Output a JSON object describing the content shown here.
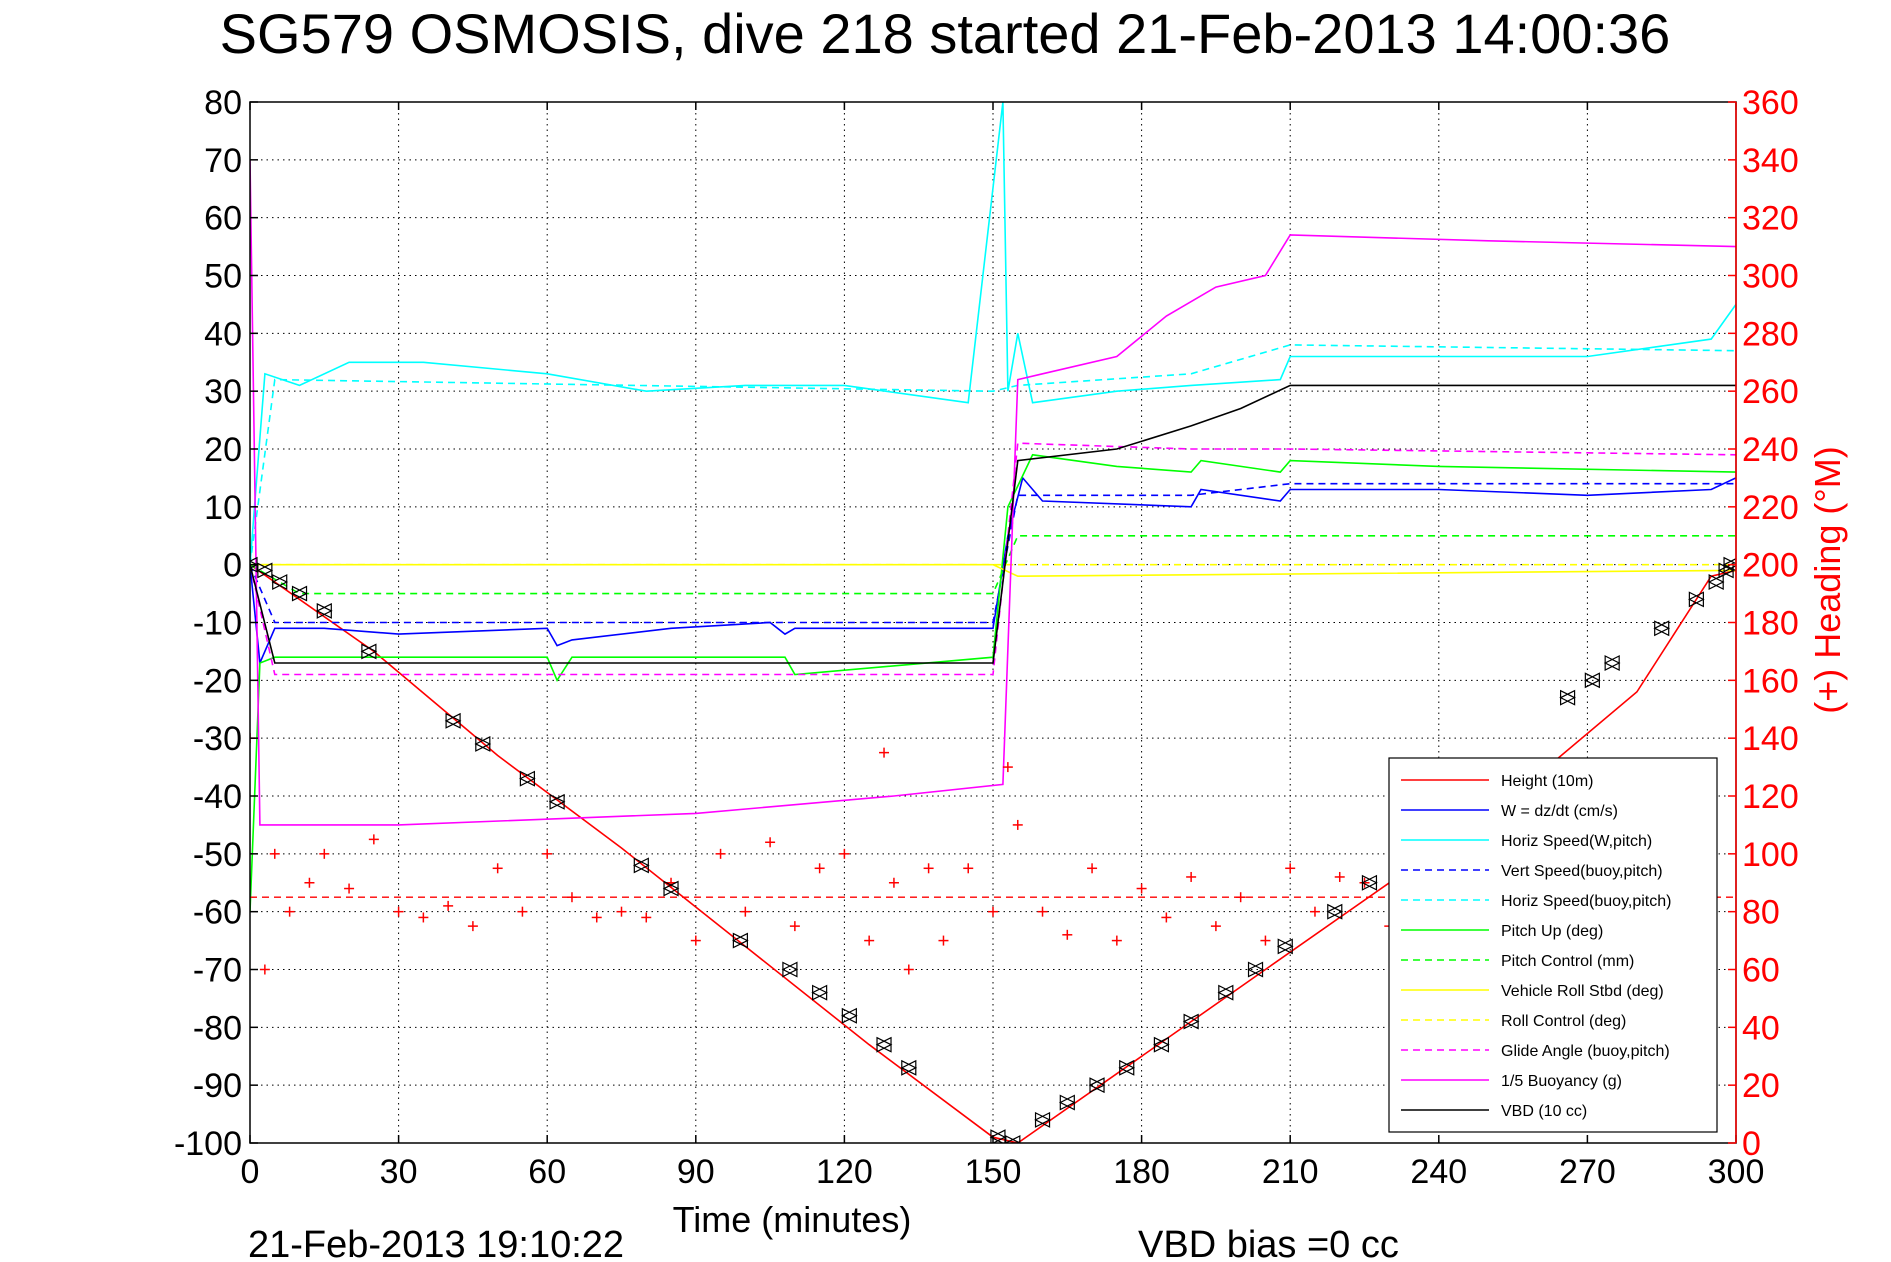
{
  "chart_data": {
    "type": "line",
    "title": "SG579 OSMOSIS, dive 218 started 21-Feb-2013 14:00:36",
    "xlabel": "Time (minutes)",
    "ylabel_right": "(+) Heading (°M)",
    "xlim": [
      0,
      300
    ],
    "ylim": [
      -100,
      80
    ],
    "ylim_right": [
      0,
      360
    ],
    "x_ticks": [
      "0",
      "30",
      "60",
      "90",
      "120",
      "150",
      "180",
      "210",
      "240",
      "270",
      "300"
    ],
    "y_ticks": [
      "80",
      "70",
      "60",
      "50",
      "40",
      "30",
      "20",
      "10",
      "0",
      "-10",
      "-20",
      "-30",
      "-40",
      "-50",
      "-60",
      "-70",
      "-80",
      "-90",
      "-100"
    ],
    "y_right_ticks": [
      "360",
      "340",
      "320",
      "300",
      "280",
      "260",
      "240",
      "220",
      "200",
      "180",
      "160",
      "140",
      "120",
      "100",
      "80",
      "60",
      "40",
      "20",
      "0"
    ],
    "grid": true,
    "legend_position": "lower-right",
    "footer_left": "21-Feb-2013 19:10:22",
    "footer_right": "VBD bias =0 cc",
    "series": [
      {
        "name": "Height (10m)",
        "color": "#ff0000",
        "style": "solid",
        "x": [
          0,
          25,
          50,
          75,
          100,
          125,
          150,
          155,
          180,
          205,
          230,
          255,
          280,
          295,
          300
        ],
        "y": [
          0,
          -15,
          -33,
          -49,
          -66,
          -83,
          -99,
          -100,
          -85,
          -70,
          -55,
          -40,
          -22,
          -2,
          -1
        ]
      },
      {
        "name": "W = dz/dt (cm/s)",
        "color": "#0000ff",
        "style": "solid",
        "x": [
          0,
          2,
          5,
          15,
          30,
          60,
          62,
          65,
          85,
          105,
          108,
          110,
          150,
          153,
          156,
          160,
          190,
          192,
          208,
          210,
          240,
          270,
          295,
          300
        ],
        "y": [
          0,
          -17,
          -11,
          -11,
          -12,
          -11,
          -14,
          -13,
          -11,
          -10,
          -12,
          -11,
          -11,
          5,
          15,
          11,
          10,
          13,
          11,
          13,
          13,
          12,
          13,
          15
        ]
      },
      {
        "name": "Horiz Speed(W,pitch)",
        "color": "#00ffff",
        "style": "solid",
        "x": [
          0,
          3,
          10,
          20,
          35,
          60,
          80,
          100,
          120,
          145,
          152,
          153,
          155,
          158,
          175,
          190,
          208,
          210,
          240,
          270,
          295,
          300
        ],
        "y": [
          0,
          33,
          31,
          35,
          35,
          33,
          30,
          31,
          31,
          28,
          80,
          30,
          40,
          28,
          30,
          31,
          32,
          36,
          36,
          36,
          39,
          45
        ]
      },
      {
        "name": "Vert Speed(buoy,pitch)",
        "color": "#0000ff",
        "style": "dashed",
        "x": [
          0,
          5,
          150,
          155,
          190,
          210,
          300
        ],
        "y": [
          0,
          -10,
          -10,
          12,
          12,
          14,
          14
        ]
      },
      {
        "name": "Horiz Speed(buoy,pitch)",
        "color": "#00ffff",
        "style": "dashed",
        "x": [
          0,
          5,
          150,
          155,
          190,
          210,
          300
        ],
        "y": [
          0,
          32,
          30,
          31,
          33,
          38,
          37
        ]
      },
      {
        "name": "Pitch Up (deg)",
        "color": "#00ff00",
        "style": "solid",
        "x": [
          0,
          2,
          5,
          60,
          62,
          65,
          108,
          110,
          150,
          153,
          158,
          175,
          190,
          192,
          208,
          210,
          240,
          300
        ],
        "y": [
          -60,
          -17,
          -16,
          -16,
          -20,
          -16,
          -16,
          -19,
          -16,
          10,
          19,
          17,
          16,
          18,
          16,
          18,
          17,
          16
        ]
      },
      {
        "name": "Pitch Control (mm)",
        "color": "#00ff00",
        "style": "dashed",
        "x": [
          0,
          10,
          150,
          155,
          300
        ],
        "y": [
          0,
          -5,
          -5,
          5,
          5
        ]
      },
      {
        "name": "Vehicle Roll Stbd (deg)",
        "color": "#ffff00",
        "style": "solid",
        "x": [
          0,
          5,
          150,
          155,
          300
        ],
        "y": [
          0,
          0,
          0,
          -2,
          -1
        ]
      },
      {
        "name": "Roll Control (deg)",
        "color": "#ffff00",
        "style": "dashed",
        "x": [
          0,
          5,
          150,
          155,
          300
        ],
        "y": [
          0,
          0,
          0,
          0,
          0
        ]
      },
      {
        "name": "Glide Angle (buoy,pitch)",
        "color": "#ff00ff",
        "style": "dashed",
        "x": [
          0,
          5,
          150,
          155,
          190,
          210,
          300
        ],
        "y": [
          0,
          -19,
          -19,
          21,
          20,
          20,
          19
        ]
      },
      {
        "name": "1/5 Buoyancy (g)",
        "color": "#ff00ff",
        "style": "solid",
        "x": [
          0,
          2,
          30,
          90,
          130,
          152,
          155,
          160,
          175,
          185,
          195,
          205,
          210,
          250,
          300
        ],
        "y": [
          70,
          -45,
          -45,
          -43,
          -40,
          -38,
          32,
          33,
          36,
          43,
          48,
          50,
          57,
          56,
          55
        ]
      },
      {
        "name": "VBD (10 cc)",
        "color": "#000000",
        "style": "solid",
        "x": [
          0,
          5,
          150,
          155,
          175,
          190,
          200,
          210,
          300
        ],
        "y": [
          0,
          -17,
          -17,
          18,
          20,
          24,
          27,
          31,
          31
        ]
      }
    ],
    "heading": {
      "name": "(+) Heading",
      "color": "#ff0000",
      "marker": "+",
      "mean": 85,
      "x": [
        0,
        3,
        5,
        8,
        12,
        15,
        20,
        25,
        30,
        35,
        40,
        45,
        50,
        55,
        60,
        65,
        70,
        75,
        80,
        85,
        90,
        95,
        100,
        105,
        110,
        115,
        120,
        125,
        128,
        130,
        133,
        137,
        140,
        145,
        150,
        153,
        155,
        160,
        165,
        170,
        175,
        180,
        185,
        190,
        195,
        200,
        205,
        210,
        215,
        220,
        225,
        230
      ],
      "y": [
        140,
        60,
        100,
        80,
        90,
        100,
        88,
        105,
        80,
        78,
        82,
        75,
        95,
        80,
        100,
        85,
        78,
        80,
        78,
        90,
        70,
        100,
        80,
        104,
        75,
        95,
        100,
        70,
        135,
        90,
        60,
        95,
        70,
        95,
        80,
        130,
        110,
        80,
        72,
        95,
        70,
        88,
        78,
        92,
        75,
        85,
        70,
        95,
        80,
        92,
        90,
        75
      ]
    },
    "markers": {
      "name": "Height markers",
      "x": [
        0,
        3,
        6,
        10,
        15,
        24,
        41,
        47,
        56,
        62,
        79,
        85,
        99,
        109,
        115,
        121,
        128,
        133,
        151,
        154,
        160,
        165,
        171,
        177,
        184,
        190,
        197,
        203,
        209,
        219,
        226,
        266,
        271,
        275,
        285,
        292,
        296,
        298,
        299
      ],
      "y": [
        0,
        -1,
        -3,
        -5,
        -8,
        -15,
        -27,
        -31,
        -37,
        -41,
        -52,
        -56,
        -65,
        -70,
        -74,
        -78,
        -83,
        -87,
        -99,
        -100,
        -96,
        -93,
        -90,
        -87,
        -83,
        -79,
        -74,
        -70,
        -66,
        -60,
        -55,
        -23,
        -20,
        -17,
        -11,
        -6,
        -3,
        -1,
        0
      ]
    }
  }
}
